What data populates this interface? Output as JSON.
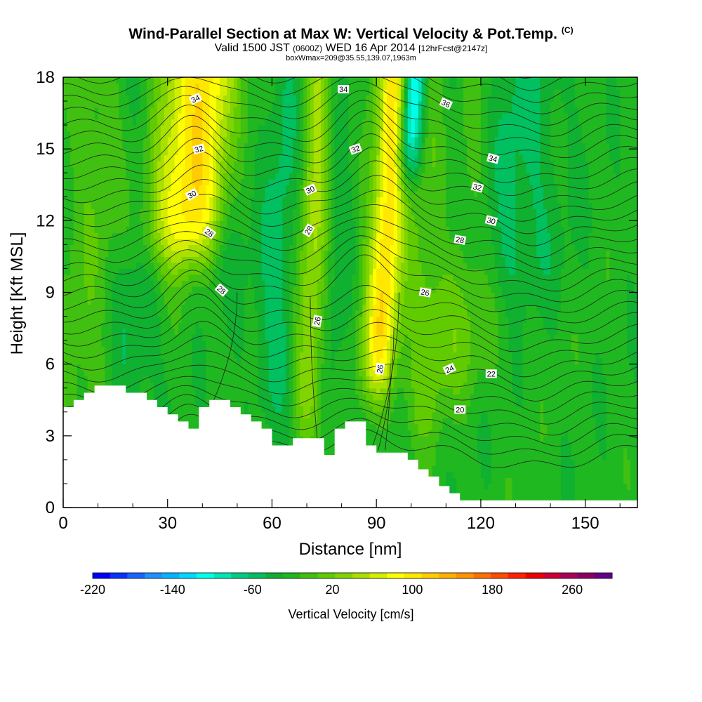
{
  "title": {
    "main": "Wind-Parallel Section at Max W: Vertical Velocity & Pot.Temp.",
    "copyright": "(C)",
    "valid_prefix": "Valid 1500 JST",
    "valid_utc": "(0600Z)",
    "valid_date": "WED 16 Apr 2014",
    "forecast": "[12hrFcst@2147z]",
    "box": "boxWmax=209@35.55,139.07,1963m"
  },
  "chart_data": {
    "type": "heatmap",
    "xlabel": "Distance [nm]",
    "ylabel": "Height [Kft MSL]",
    "xlim": [
      0,
      165
    ],
    "ylim": [
      0,
      18
    ],
    "xticks": [
      "0",
      "30",
      "60",
      "90",
      "120",
      "150"
    ],
    "yticks": [
      "0",
      "3",
      "6",
      "9",
      "12",
      "15",
      "18"
    ],
    "colorbar": {
      "label": "Vertical Velocity [cm/s]",
      "range": [
        -220,
        300
      ],
      "step": 20,
      "tick_labels": [
        "-220",
        "-140",
        "-60",
        "20",
        "100",
        "180",
        "260"
      ],
      "colors": [
        "#0000ff",
        "#0a32ff",
        "#1464ff",
        "#1e90ff",
        "#00b4ff",
        "#00d8ff",
        "#00ffea",
        "#00e6b4",
        "#00cc80",
        "#00c060",
        "#10b030",
        "#20b820",
        "#40c010",
        "#60cc00",
        "#80d400",
        "#a8e000",
        "#d4ee00",
        "#ffff00",
        "#ffe800",
        "#ffcc00",
        "#ffb000",
        "#ff9400",
        "#ff7000",
        "#ff4c00",
        "#ff2200",
        "#ee0000",
        "#cc0033",
        "#aa0055",
        "#880066",
        "#660088"
      ]
    },
    "ridges": [
      {
        "x": 34,
        "top": 160,
        "width": 14,
        "bottom": 10.5,
        "skew": 0.9
      },
      {
        "x": 72,
        "top": 100,
        "width": 5,
        "bottom": 3.5,
        "skew": 0.25
      },
      {
        "x": 92,
        "top": 150,
        "width": 5,
        "bottom": 5.0,
        "skew": 0.4
      },
      {
        "x": 105,
        "top": 40,
        "width": 6,
        "bottom": 3.0,
        "skew": 0.3
      },
      {
        "x": 115,
        "top": 40,
        "width": 9,
        "bottom": 5.0,
        "skew": 0.4
      },
      {
        "x": 8,
        "top": 25,
        "width": 10,
        "bottom": 3.0,
        "skew": 0.2
      }
    ],
    "troughs": [
      {
        "x": 46,
        "top": -70,
        "width": 7,
        "bottom": 10.0,
        "skew": 0.6
      },
      {
        "x": 97,
        "top": -150,
        "width": 3.5,
        "bottom": 14.0,
        "skew": 0.4
      },
      {
        "x": 76,
        "top": -45,
        "width": 5,
        "bottom": 4.0,
        "skew": 0.25
      },
      {
        "x": 62,
        "top": -40,
        "width": 7,
        "bottom": 4.0,
        "skew": 0.2
      },
      {
        "x": 108,
        "top": -40,
        "width": 5,
        "bottom": 10.0,
        "skew": 0.4
      },
      {
        "x": 20,
        "top": -35,
        "width": 7,
        "bottom": 4.0,
        "skew": 0.3
      },
      {
        "x": 128,
        "top": -40,
        "width": 14,
        "bottom": 9.0,
        "skew": 0.0
      }
    ],
    "terrain": [
      [
        0,
        4.2
      ],
      [
        3,
        4.2
      ],
      [
        3,
        4.5
      ],
      [
        6,
        4.5
      ],
      [
        6,
        4.8
      ],
      [
        9,
        4.8
      ],
      [
        9,
        5.1
      ],
      [
        18,
        5.1
      ],
      [
        18,
        4.8
      ],
      [
        24,
        4.8
      ],
      [
        24,
        4.5
      ],
      [
        27,
        4.5
      ],
      [
        27,
        4.2
      ],
      [
        30,
        4.2
      ],
      [
        30,
        3.9
      ],
      [
        33,
        3.9
      ],
      [
        33,
        3.6
      ],
      [
        36,
        3.6
      ],
      [
        36,
        3.3
      ],
      [
        39,
        3.3
      ],
      [
        39,
        4.2
      ],
      [
        42,
        4.2
      ],
      [
        42,
        4.5
      ],
      [
        48,
        4.5
      ],
      [
        48,
        4.2
      ],
      [
        51,
        4.2
      ],
      [
        51,
        3.9
      ],
      [
        54,
        3.9
      ],
      [
        54,
        3.6
      ],
      [
        57,
        3.6
      ],
      [
        57,
        3.3
      ],
      [
        60,
        3.3
      ],
      [
        60,
        2.6
      ],
      [
        63,
        2.6
      ],
      [
        63,
        2.6
      ],
      [
        66,
        2.6
      ],
      [
        66,
        2.9
      ],
      [
        75,
        2.9
      ],
      [
        75,
        2.2
      ],
      [
        78,
        2.2
      ],
      [
        78,
        3.3
      ],
      [
        81,
        3.3
      ],
      [
        81,
        3.6
      ],
      [
        87,
        3.6
      ],
      [
        87,
        2.6
      ],
      [
        90,
        2.6
      ],
      [
        90,
        2.3
      ],
      [
        99,
        2.3
      ],
      [
        99,
        2.0
      ],
      [
        102,
        2.0
      ],
      [
        102,
        1.6
      ],
      [
        105,
        1.6
      ],
      [
        105,
        1.3
      ],
      [
        108,
        1.3
      ],
      [
        108,
        0.9
      ],
      [
        111,
        0.9
      ],
      [
        111,
        0.6
      ],
      [
        114,
        0.6
      ],
      [
        114,
        0.3
      ],
      [
        165,
        0.3
      ],
      [
        165,
        0
      ],
      [
        0,
        0
      ]
    ],
    "theta_labels": [
      {
        "text": "34",
        "x": 38,
        "y": 17.1,
        "rot": -25
      },
      {
        "text": "32",
        "x": 39,
        "y": 15.0,
        "rot": -15
      },
      {
        "text": "30",
        "x": 37,
        "y": 13.1,
        "rot": -30
      },
      {
        "text": "28",
        "x": 42,
        "y": 11.5,
        "rot": 35
      },
      {
        "text": "28",
        "x": 45.5,
        "y": 9.1,
        "rot": 40
      },
      {
        "text": "34",
        "x": 80.5,
        "y": 17.5,
        "rot": 0
      },
      {
        "text": "32",
        "x": 84,
        "y": 15.0,
        "rot": -20
      },
      {
        "text": "30",
        "x": 71,
        "y": 13.3,
        "rot": -25
      },
      {
        "text": "28",
        "x": 70.5,
        "y": 11.6,
        "rot": -60
      },
      {
        "text": "26",
        "x": 73,
        "y": 7.8,
        "rot": -80
      },
      {
        "text": "26",
        "x": 91,
        "y": 5.8,
        "rot": -80
      },
      {
        "text": "36",
        "x": 110,
        "y": 16.9,
        "rot": 25
      },
      {
        "text": "34",
        "x": 123.5,
        "y": 14.6,
        "rot": 15
      },
      {
        "text": "32",
        "x": 119,
        "y": 13.4,
        "rot": 15
      },
      {
        "text": "30",
        "x": 123,
        "y": 12.0,
        "rot": 15
      },
      {
        "text": "28",
        "x": 114,
        "y": 11.2,
        "rot": 10
      },
      {
        "text": "26",
        "x": 104,
        "y": 9.0,
        "rot": 10
      },
      {
        "text": "24",
        "x": 111,
        "y": 5.8,
        "rot": -25
      },
      {
        "text": "22",
        "x": 123,
        "y": 5.6,
        "rot": 0
      },
      {
        "text": "20",
        "x": 114,
        "y": 4.1,
        "rot": 0
      }
    ]
  }
}
